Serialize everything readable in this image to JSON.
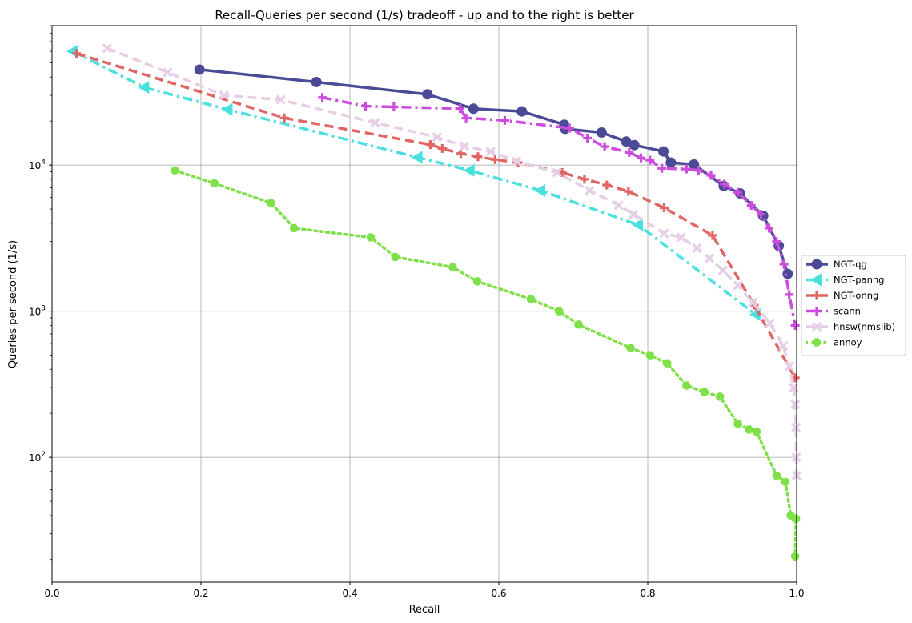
{
  "chart_data": {
    "type": "line",
    "title": "Recall-Queries per second (1/s) tradeoff - up and to the right is better",
    "xlabel": "Recall",
    "ylabel": "Queries per second (1/s)",
    "xlim": [
      0.0,
      1.0
    ],
    "ylim": [
      14,
      90000
    ],
    "yscale": "log",
    "grid": true,
    "legend_position": "right, outside plot",
    "x_ticks": [
      "0.0",
      "0.2",
      "0.4",
      "0.6",
      "0.8",
      "1.0"
    ],
    "y_ticks": [
      {
        "value": 100,
        "base": "10",
        "exp": "2"
      },
      {
        "value": 1000,
        "base": "10",
        "exp": "3"
      },
      {
        "value": 10000,
        "base": "10",
        "exp": "4"
      }
    ],
    "series": [
      {
        "name": "NGT-qg",
        "color": "#4a4a96",
        "dash": "solid",
        "marker": "circle",
        "points": [
          [
            0.198,
            45000
          ],
          [
            0.355,
            37000
          ],
          [
            0.504,
            30500
          ],
          [
            0.566,
            24300
          ],
          [
            0.631,
            23300
          ],
          [
            0.688,
            18900
          ],
          [
            0.689,
            17700
          ],
          [
            0.738,
            16700
          ],
          [
            0.771,
            14500
          ],
          [
            0.782,
            13700
          ],
          [
            0.821,
            12400
          ],
          [
            0.831,
            10400
          ],
          [
            0.862,
            10100
          ],
          [
            0.902,
            7200
          ],
          [
            0.924,
            6400
          ],
          [
            0.955,
            4500
          ],
          [
            0.976,
            2800
          ],
          [
            0.988,
            1800
          ]
        ]
      },
      {
        "name": "NGT-panng",
        "color": "#4ae0e0",
        "dash": "dashdot",
        "marker": "triangle-left",
        "points": [
          [
            0.028,
            60000
          ],
          [
            0.124,
            34000
          ],
          [
            0.236,
            24000
          ],
          [
            0.491,
            11300
          ],
          [
            0.561,
            9200
          ],
          [
            0.656,
            6700
          ],
          [
            0.787,
            3900
          ],
          [
            0.945,
            950
          ]
        ]
      },
      {
        "name": "NGT-onng",
        "color": "#e06666",
        "dash": "dashed",
        "marker": "plus",
        "points": [
          [
            0.033,
            58000
          ],
          [
            0.312,
            21000
          ],
          [
            0.508,
            13800
          ],
          [
            0.524,
            13000
          ],
          [
            0.549,
            12000
          ],
          [
            0.572,
            11400
          ],
          [
            0.595,
            10900
          ],
          [
            0.626,
            10400
          ],
          [
            0.685,
            8900
          ],
          [
            0.715,
            8000
          ],
          [
            0.745,
            7300
          ],
          [
            0.774,
            6600
          ],
          [
            0.822,
            5100
          ],
          [
            0.887,
            3300
          ],
          [
            0.943,
            1100
          ],
          [
            0.998,
            350
          ]
        ]
      },
      {
        "name": "scann",
        "color": "#cc4ddd",
        "dash": "dashdot",
        "marker": "plus",
        "points": [
          [
            0.363,
            29000
          ],
          [
            0.421,
            25300
          ],
          [
            0.459,
            25000
          ],
          [
            0.548,
            24400
          ],
          [
            0.556,
            21000
          ],
          [
            0.608,
            20200
          ],
          [
            0.695,
            17900
          ],
          [
            0.719,
            15300
          ],
          [
            0.742,
            13400
          ],
          [
            0.775,
            12200
          ],
          [
            0.791,
            11200
          ],
          [
            0.803,
            10800
          ],
          [
            0.819,
            9500
          ],
          [
            0.852,
            9400
          ],
          [
            0.868,
            9200
          ],
          [
            0.885,
            8500
          ],
          [
            0.903,
            7400
          ],
          [
            0.921,
            6500
          ],
          [
            0.939,
            5300
          ],
          [
            0.952,
            4600
          ],
          [
            0.963,
            3700
          ],
          [
            0.973,
            3000
          ],
          [
            0.983,
            2100
          ],
          [
            0.99,
            1300
          ],
          [
            0.998,
            800
          ]
        ]
      },
      {
        "name": "hnsw(nmslib)",
        "color": "#e6cfe6",
        "dash": "dashed",
        "marker": "x",
        "points": [
          [
            0.074,
            63000
          ],
          [
            0.155,
            43000
          ],
          [
            0.231,
            30000
          ],
          [
            0.307,
            28000
          ],
          [
            0.434,
            19500
          ],
          [
            0.517,
            15500
          ],
          [
            0.554,
            13500
          ],
          [
            0.589,
            12400
          ],
          [
            0.624,
            10600
          ],
          [
            0.678,
            8900
          ],
          [
            0.722,
            6700
          ],
          [
            0.761,
            5300
          ],
          [
            0.781,
            4600
          ],
          [
            0.822,
            3400
          ],
          [
            0.845,
            3200
          ],
          [
            0.866,
            2700
          ],
          [
            0.883,
            2300
          ],
          [
            0.901,
            1900
          ],
          [
            0.921,
            1500
          ],
          [
            0.941,
            1150
          ],
          [
            0.964,
            830
          ],
          [
            0.982,
            580
          ],
          [
            0.99,
            420
          ],
          [
            0.996,
            300
          ],
          [
            0.998,
            230
          ],
          [
            0.999,
            160
          ],
          [
            0.9995,
            100
          ],
          [
            1.0,
            75
          ]
        ]
      },
      {
        "name": "annoy",
        "color": "#7fe04a",
        "dash": "dotted",
        "marker": "octagon",
        "points": [
          [
            0.165,
            9200
          ],
          [
            0.218,
            7500
          ],
          [
            0.294,
            5500
          ],
          [
            0.325,
            3700
          ],
          [
            0.428,
            3200
          ],
          [
            0.461,
            2350
          ],
          [
            0.538,
            2000
          ],
          [
            0.571,
            1600
          ],
          [
            0.643,
            1210
          ],
          [
            0.681,
            1000
          ],
          [
            0.707,
            810
          ],
          [
            0.777,
            560
          ],
          [
            0.803,
            500
          ],
          [
            0.826,
            440
          ],
          [
            0.852,
            310
          ],
          [
            0.876,
            280
          ],
          [
            0.897,
            260
          ],
          [
            0.921,
            170
          ],
          [
            0.936,
            155
          ],
          [
            0.946,
            150
          ],
          [
            0.973,
            75
          ],
          [
            0.985,
            68
          ],
          [
            0.992,
            40
          ],
          [
            0.999,
            38
          ],
          [
            0.998,
            21
          ]
        ]
      }
    ]
  }
}
